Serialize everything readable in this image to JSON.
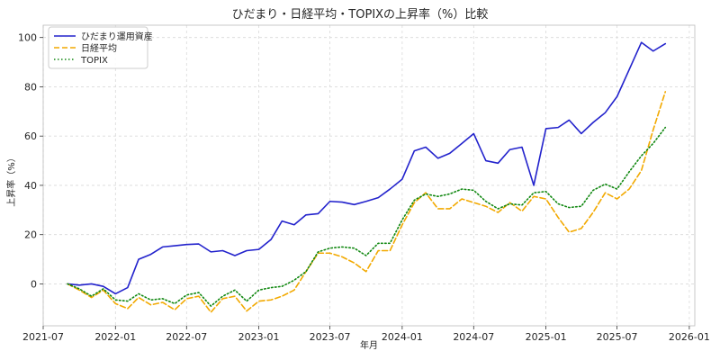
{
  "chart_data": {
    "type": "line",
    "title": "ひだまり・日経平均・TOPIXの上昇率（%）比較",
    "xlabel": "年月",
    "ylabel": "上昇率（%）",
    "xlim": [
      "2021-07-01",
      "2026-01-15"
    ],
    "ylim": [
      -17,
      105
    ],
    "xticks": [
      "2021-07",
      "2022-01",
      "2022-07",
      "2023-01",
      "2023-07",
      "2024-01",
      "2024-07",
      "2025-01",
      "2025-07",
      "2026-01"
    ],
    "yticks": [
      0,
      20,
      40,
      60,
      80,
      100
    ],
    "grid": true,
    "legend_position": "top-left",
    "x": [
      "2021-09",
      "2021-10",
      "2021-11",
      "2021-12",
      "2022-01",
      "2022-02",
      "2022-03",
      "2022-04",
      "2022-05",
      "2022-06",
      "2022-07",
      "2022-08",
      "2022-09",
      "2022-10",
      "2022-11",
      "2022-12",
      "2023-01",
      "2023-02",
      "2023-03",
      "2023-04",
      "2023-05",
      "2023-06",
      "2023-07",
      "2023-08",
      "2023-09",
      "2023-10",
      "2023-11",
      "2023-12",
      "2024-01",
      "2024-02",
      "2024-03",
      "2024-04",
      "2024-05",
      "2024-06",
      "2024-07",
      "2024-08",
      "2024-09",
      "2024-10",
      "2024-11",
      "2024-12",
      "2025-01",
      "2025-02",
      "2025-03",
      "2025-04",
      "2025-05",
      "2025-06",
      "2025-07",
      "2025-08",
      "2025-09",
      "2025-10",
      "2025-11"
    ],
    "series": [
      {
        "name": "ひだまり運用資産",
        "color": "#2222cc",
        "dash": "solid",
        "values": [
          0,
          -0.5,
          0,
          -1,
          -4,
          -1.5,
          10,
          12,
          15,
          15.5,
          16,
          16.2,
          13,
          13.5,
          11.5,
          13.5,
          14,
          18,
          25.5,
          24,
          28,
          28.5,
          33.5,
          33.2,
          32.2,
          33.5,
          35,
          38.5,
          42.5,
          54,
          55.5,
          51,
          53,
          57,
          61,
          50,
          49,
          54.5,
          55.5,
          40,
          63,
          63.5,
          66.5,
          61,
          65.5,
          69.5,
          76,
          87,
          98,
          94.5,
          97.5
        ]
      },
      {
        "name": "日経平均",
        "color": "#f2a900",
        "dash": "dashed",
        "values": [
          0,
          -2.5,
          -5.5,
          -2.5,
          -8,
          -10,
          -5.5,
          -8.5,
          -7.5,
          -10.5,
          -6,
          -5,
          -11.5,
          -6,
          -5,
          -11,
          -7,
          -6.5,
          -5,
          -2.5,
          5,
          12.5,
          12.5,
          11,
          8.5,
          5,
          13.5,
          13.5,
          24,
          33,
          37,
          30.5,
          30.5,
          34.5,
          33,
          31.5,
          29,
          33,
          29.5,
          35.5,
          34.5,
          27,
          21,
          22.5,
          29,
          37,
          34.5,
          38.5,
          46,
          62.5,
          78
        ]
      },
      {
        "name": "TOPIX",
        "color": "#118811",
        "dash": "dotted",
        "values": [
          0,
          -2,
          -5,
          -2,
          -6.5,
          -7,
          -4,
          -6.5,
          -6,
          -8,
          -4.5,
          -3.5,
          -9,
          -5,
          -2.5,
          -7,
          -2.5,
          -1.5,
          -1,
          1.5,
          5,
          13,
          14.5,
          15,
          14.5,
          11.5,
          16.5,
          16.5,
          26,
          34,
          36.5,
          35.5,
          36.5,
          38.5,
          38,
          33.5,
          30.5,
          32.5,
          32,
          37,
          37.5,
          32.5,
          31,
          31.5,
          38,
          40.5,
          38.5,
          45.5,
          52,
          57,
          63.5
        ]
      }
    ]
  }
}
